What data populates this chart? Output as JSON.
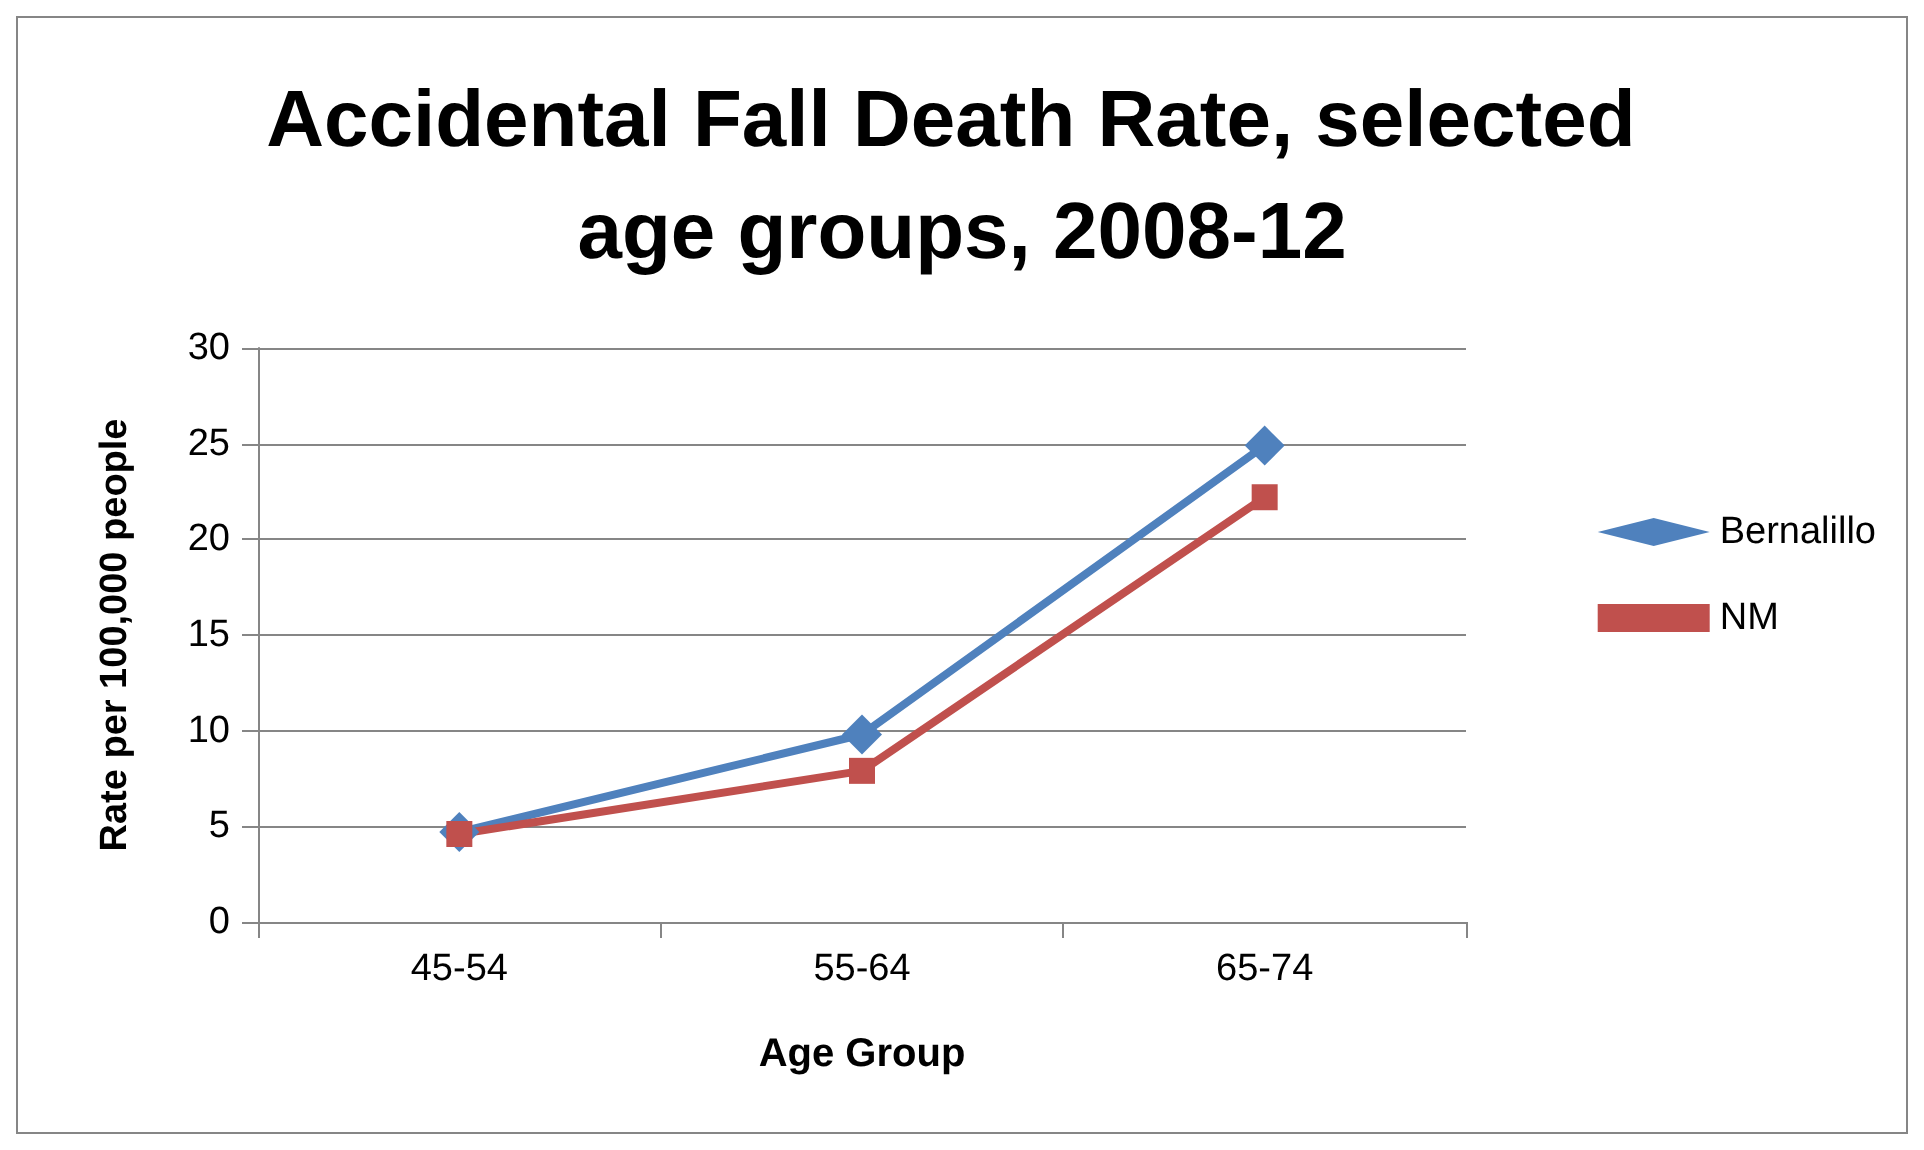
{
  "chart_data": {
    "type": "line",
    "title": "Accidental Fall Death Rate, selected age groups, 2008-12",
    "xlabel": "Age Group",
    "ylabel": "Rate per 100,000 people",
    "categories": [
      "45-54",
      "55-64",
      "65-74"
    ],
    "series": [
      {
        "name": "Bernalillo",
        "color": "#4f81bd",
        "marker": "diamond",
        "values": [
          4.7,
          9.8,
          24.9
        ]
      },
      {
        "name": "NM",
        "color": "#c0504d",
        "marker": "square",
        "values": [
          4.6,
          7.9,
          22.2
        ]
      }
    ],
    "ylim": [
      0,
      30
    ],
    "yticks": [
      0,
      5,
      10,
      15,
      20,
      25,
      30
    ],
    "grid": "y",
    "legend": "right",
    "line_style": "solid"
  }
}
